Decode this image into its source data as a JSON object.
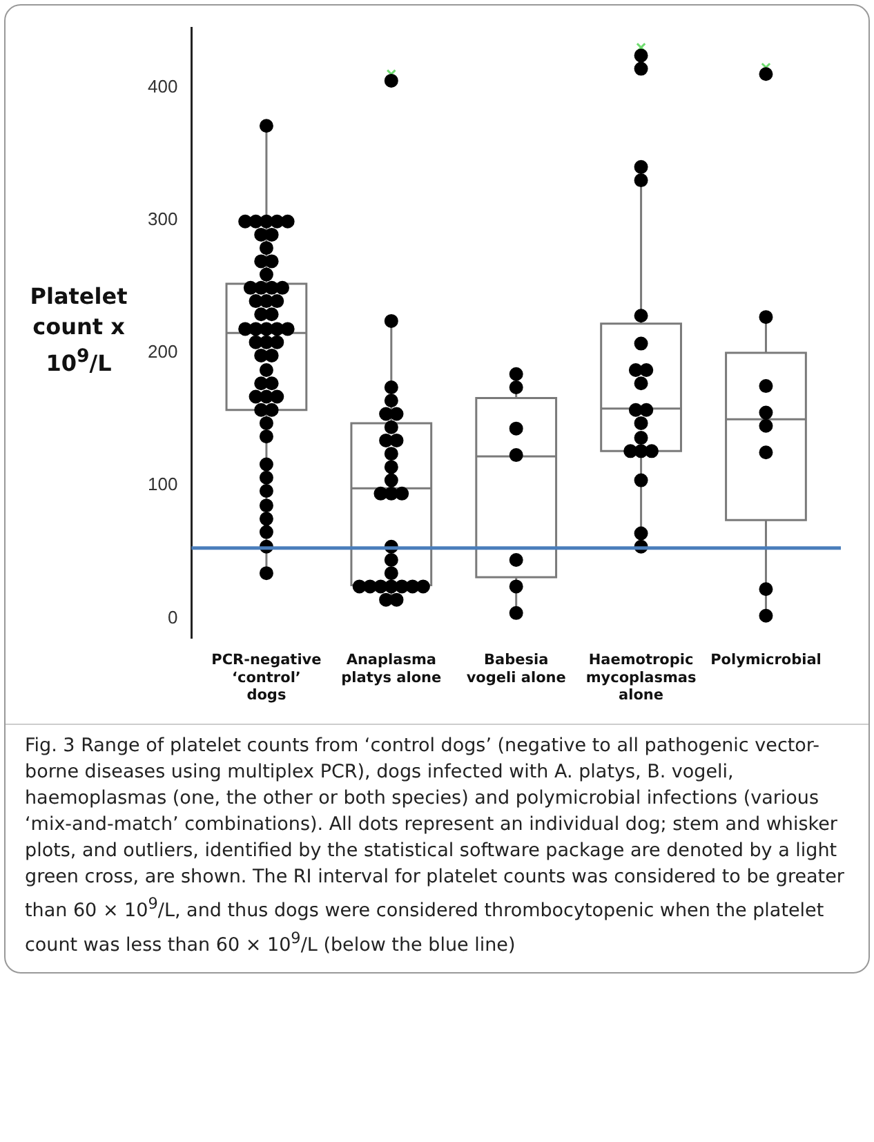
{
  "chart_data": {
    "type": "box",
    "ylabel": "Platelet count x 10$^{9}$/L",
    "categories": [
      "PCR-negative ‘control’ dogs",
      "Anaplasma platys alone",
      "Babesia vogeli alone",
      "Haemotropic mycoplasmas alone",
      "Polymicrobial"
    ],
    "boxes": [
      {
        "low": 34,
        "q1": 157,
        "median": 215,
        "q3": 252,
        "high": 371
      },
      {
        "low": 14,
        "q1": 25,
        "median": 98,
        "q3": 147,
        "high": 224,
        "outliers": [
          410
        ]
      },
      {
        "low": 4,
        "q1": 31,
        "median": 122,
        "q3": 166,
        "high": 184
      },
      {
        "low": 54,
        "q1": 126,
        "median": 158,
        "q3": 222,
        "high": 340,
        "outliers": [
          430
        ]
      },
      {
        "low": 2,
        "q1": 74,
        "median": 150,
        "q3": 200,
        "high": 227,
        "outliers": [
          415
        ]
      }
    ],
    "series": [
      {
        "type": "scatter",
        "color": "#000000",
        "x": [
          "PCR-negative ‘control’ dogs",
          "PCR-negative ‘control’ dogs",
          "PCR-negative ‘control’ dogs",
          "PCR-negative ‘control’ dogs",
          "PCR-negative ‘control’ dogs",
          "PCR-negative ‘control’ dogs",
          "PCR-negative ‘control’ dogs",
          "PCR-negative ‘control’ dogs",
          "PCR-negative ‘control’ dogs",
          "PCR-negative ‘control’ dogs",
          "PCR-negative ‘control’ dogs",
          "PCR-negative ‘control’ dogs",
          "PCR-negative ‘control’ dogs",
          "PCR-negative ‘control’ dogs",
          "PCR-negative ‘control’ dogs",
          "PCR-negative ‘control’ dogs",
          "PCR-negative ‘control’ dogs",
          "PCR-negative ‘control’ dogs",
          "PCR-negative ‘control’ dogs",
          "PCR-negative ‘control’ dogs",
          "PCR-negative ‘control’ dogs",
          "PCR-negative ‘control’ dogs",
          "PCR-negative ‘control’ dogs",
          "PCR-negative ‘control’ dogs",
          "PCR-negative ‘control’ dogs",
          "PCR-negative ‘control’ dogs",
          "PCR-negative ‘control’ dogs",
          "PCR-negative ‘control’ dogs",
          "PCR-negative ‘control’ dogs",
          "PCR-negative ‘control’ dogs",
          "PCR-negative ‘control’ dogs",
          "PCR-negative ‘control’ dogs",
          "PCR-negative ‘control’ dogs",
          "PCR-negative ‘control’ dogs",
          "PCR-negative ‘control’ dogs",
          "PCR-negative ‘control’ dogs",
          "PCR-negative ‘control’ dogs",
          "PCR-negative ‘control’ dogs",
          "PCR-negative ‘control’ dogs",
          "PCR-negative ‘control’ dogs",
          "PCR-negative ‘control’ dogs",
          "PCR-negative ‘control’ dogs",
          "PCR-negative ‘control’ dogs",
          "PCR-negative ‘control’ dogs",
          "PCR-negative ‘control’ dogs",
          "PCR-negative ‘control’ dogs",
          "PCR-negative ‘control’ dogs",
          "PCR-negative ‘control’ dogs",
          "PCR-negative ‘control’ dogs",
          "Anaplasma platys alone",
          "Anaplasma platys alone",
          "Anaplasma platys alone",
          "Anaplasma platys alone",
          "Anaplasma platys alone",
          "Anaplasma platys alone",
          "Anaplasma platys alone",
          "Anaplasma platys alone",
          "Anaplasma platys alone",
          "Anaplasma platys alone",
          "Anaplasma platys alone",
          "Anaplasma platys alone",
          "Anaplasma platys alone",
          "Anaplasma platys alone",
          "Anaplasma platys alone",
          "Anaplasma platys alone",
          "Anaplasma platys alone",
          "Anaplasma platys alone",
          "Anaplasma platys alone",
          "Anaplasma platys alone",
          "Anaplasma platys alone",
          "Anaplasma platys alone",
          "Anaplasma platys alone",
          "Anaplasma platys alone",
          "Anaplasma platys alone",
          "Anaplasma platys alone",
          "Anaplasma platys alone",
          "Babesia vogeli alone",
          "Babesia vogeli alone",
          "Babesia vogeli alone",
          "Babesia vogeli alone",
          "Babesia vogeli alone",
          "Babesia vogeli alone",
          "Babesia vogeli alone",
          "Haemotropic mycoplasmas alone",
          "Haemotropic mycoplasmas alone",
          "Haemotropic mycoplasmas alone",
          "Haemotropic mycoplasmas alone",
          "Haemotropic mycoplasmas alone",
          "Haemotropic mycoplasmas alone",
          "Haemotropic mycoplasmas alone",
          "Haemotropic mycoplasmas alone",
          "Haemotropic mycoplasmas alone",
          "Haemotropic mycoplasmas alone",
          "Haemotropic mycoplasmas alone",
          "Haemotropic mycoplasmas alone",
          "Haemotropic mycoplasmas alone",
          "Haemotropic mycoplasmas alone",
          "Haemotropic mycoplasmas alone",
          "Haemotropic mycoplasmas alone",
          "Haemotropic mycoplasmas alone",
          "Haemotropic mycoplasmas alone",
          "Haemotropic mycoplasmas alone",
          "Polymicrobial",
          "Polymicrobial",
          "Polymicrobial",
          "Polymicrobial",
          "Polymicrobial",
          "Polymicrobial",
          "Polymicrobial",
          "Polymicrobial"
        ],
        "values": [
          371,
          299,
          299,
          299,
          299,
          299,
          289,
          289,
          279,
          269,
          269,
          259,
          249,
          249,
          249,
          249,
          239,
          239,
          239,
          229,
          229,
          218,
          218,
          218,
          218,
          218,
          208,
          208,
          208,
          198,
          198,
          187,
          177,
          177,
          167,
          167,
          167,
          157,
          157,
          147,
          137,
          116,
          106,
          96,
          85,
          75,
          65,
          54,
          34,
          405,
          224,
          174,
          164,
          154,
          154,
          144,
          134,
          134,
          124,
          114,
          104,
          94,
          94,
          94,
          54,
          44,
          34,
          24,
          24,
          24,
          24,
          24,
          24,
          24,
          14,
          14,
          184,
          174,
          143,
          123,
          44,
          24,
          4,
          424,
          414,
          340,
          330,
          228,
          207,
          187,
          187,
          177,
          157,
          157,
          147,
          136,
          126,
          126,
          126,
          104,
          64,
          54,
          410,
          227,
          175,
          155,
          145,
          125,
          22,
          2
        ]
      }
    ],
    "marker": "circle",
    "ylim": [
      -15,
      445
    ],
    "yticks": [
      0,
      100,
      200,
      300,
      400
    ],
    "grid": false,
    "ref_lines": [
      {
        "axis": "y",
        "value": 53,
        "color": "#4a7ebb"
      }
    ],
    "annotations": [
      "Fig. 3 Range of platelet counts from ‘control dogs’ (negative to all pathogenic vector-borne diseases using multiplex PCR), dogs infected with A. platys, B. vogeli, haemoplasmas (one, the other or both species) and polymicrobial infections (various ‘mix-and-match’ combinations). All dots represent an individual dog; stem and whisker plots, and outliers, identified by the statistical software package are denoted by a light green cross, are shown. The RI interval for platelet counts was considered to be greater than 60 × 10$^{9}$/L, and thus dogs were considered thrombocytopenic when the platelet count was less than 60 × 10$^{9}$/L (below the blue line)"
    ]
  }
}
